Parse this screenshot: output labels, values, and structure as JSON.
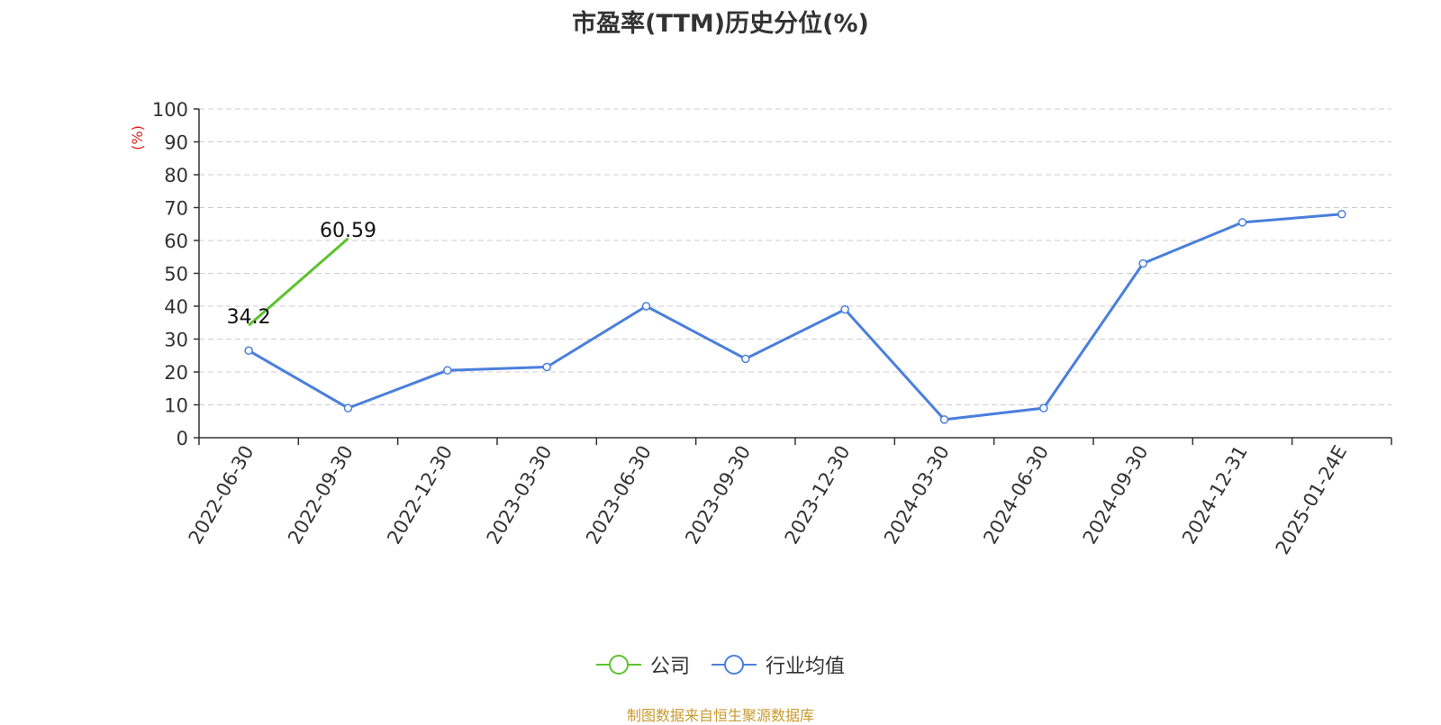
{
  "chart_data": {
    "type": "line",
    "title": "市盈率(TTM)历史分位(%)",
    "ylabel": "(%)",
    "ylim": [
      0,
      100
    ],
    "yticks": [
      0,
      10,
      20,
      30,
      40,
      50,
      60,
      70,
      80,
      90,
      100
    ],
    "grid": true,
    "legend_position": "bottom",
    "categories": [
      "2022-06-30",
      "2022-09-30",
      "2022-12-30",
      "2023-03-30",
      "2023-06-30",
      "2023-09-30",
      "2023-12-30",
      "2024-03-30",
      "2024-06-30",
      "2024-09-30",
      "2024-12-31",
      "2025-01-24E"
    ],
    "series": [
      {
        "name": "公司",
        "color": "#5cc22d",
        "values": [
          34.2,
          60.59,
          null,
          null,
          null,
          null,
          null,
          null,
          null,
          null,
          null,
          null
        ],
        "labels": [
          "34.2",
          "60.59"
        ]
      },
      {
        "name": "行业均值",
        "color": "#4a7fdc",
        "values": [
          26.5,
          9,
          20.5,
          21.5,
          40,
          24,
          39,
          5.5,
          9,
          53,
          65.5,
          68
        ]
      }
    ]
  },
  "source_note": "制图数据来自恒生聚源数据库"
}
